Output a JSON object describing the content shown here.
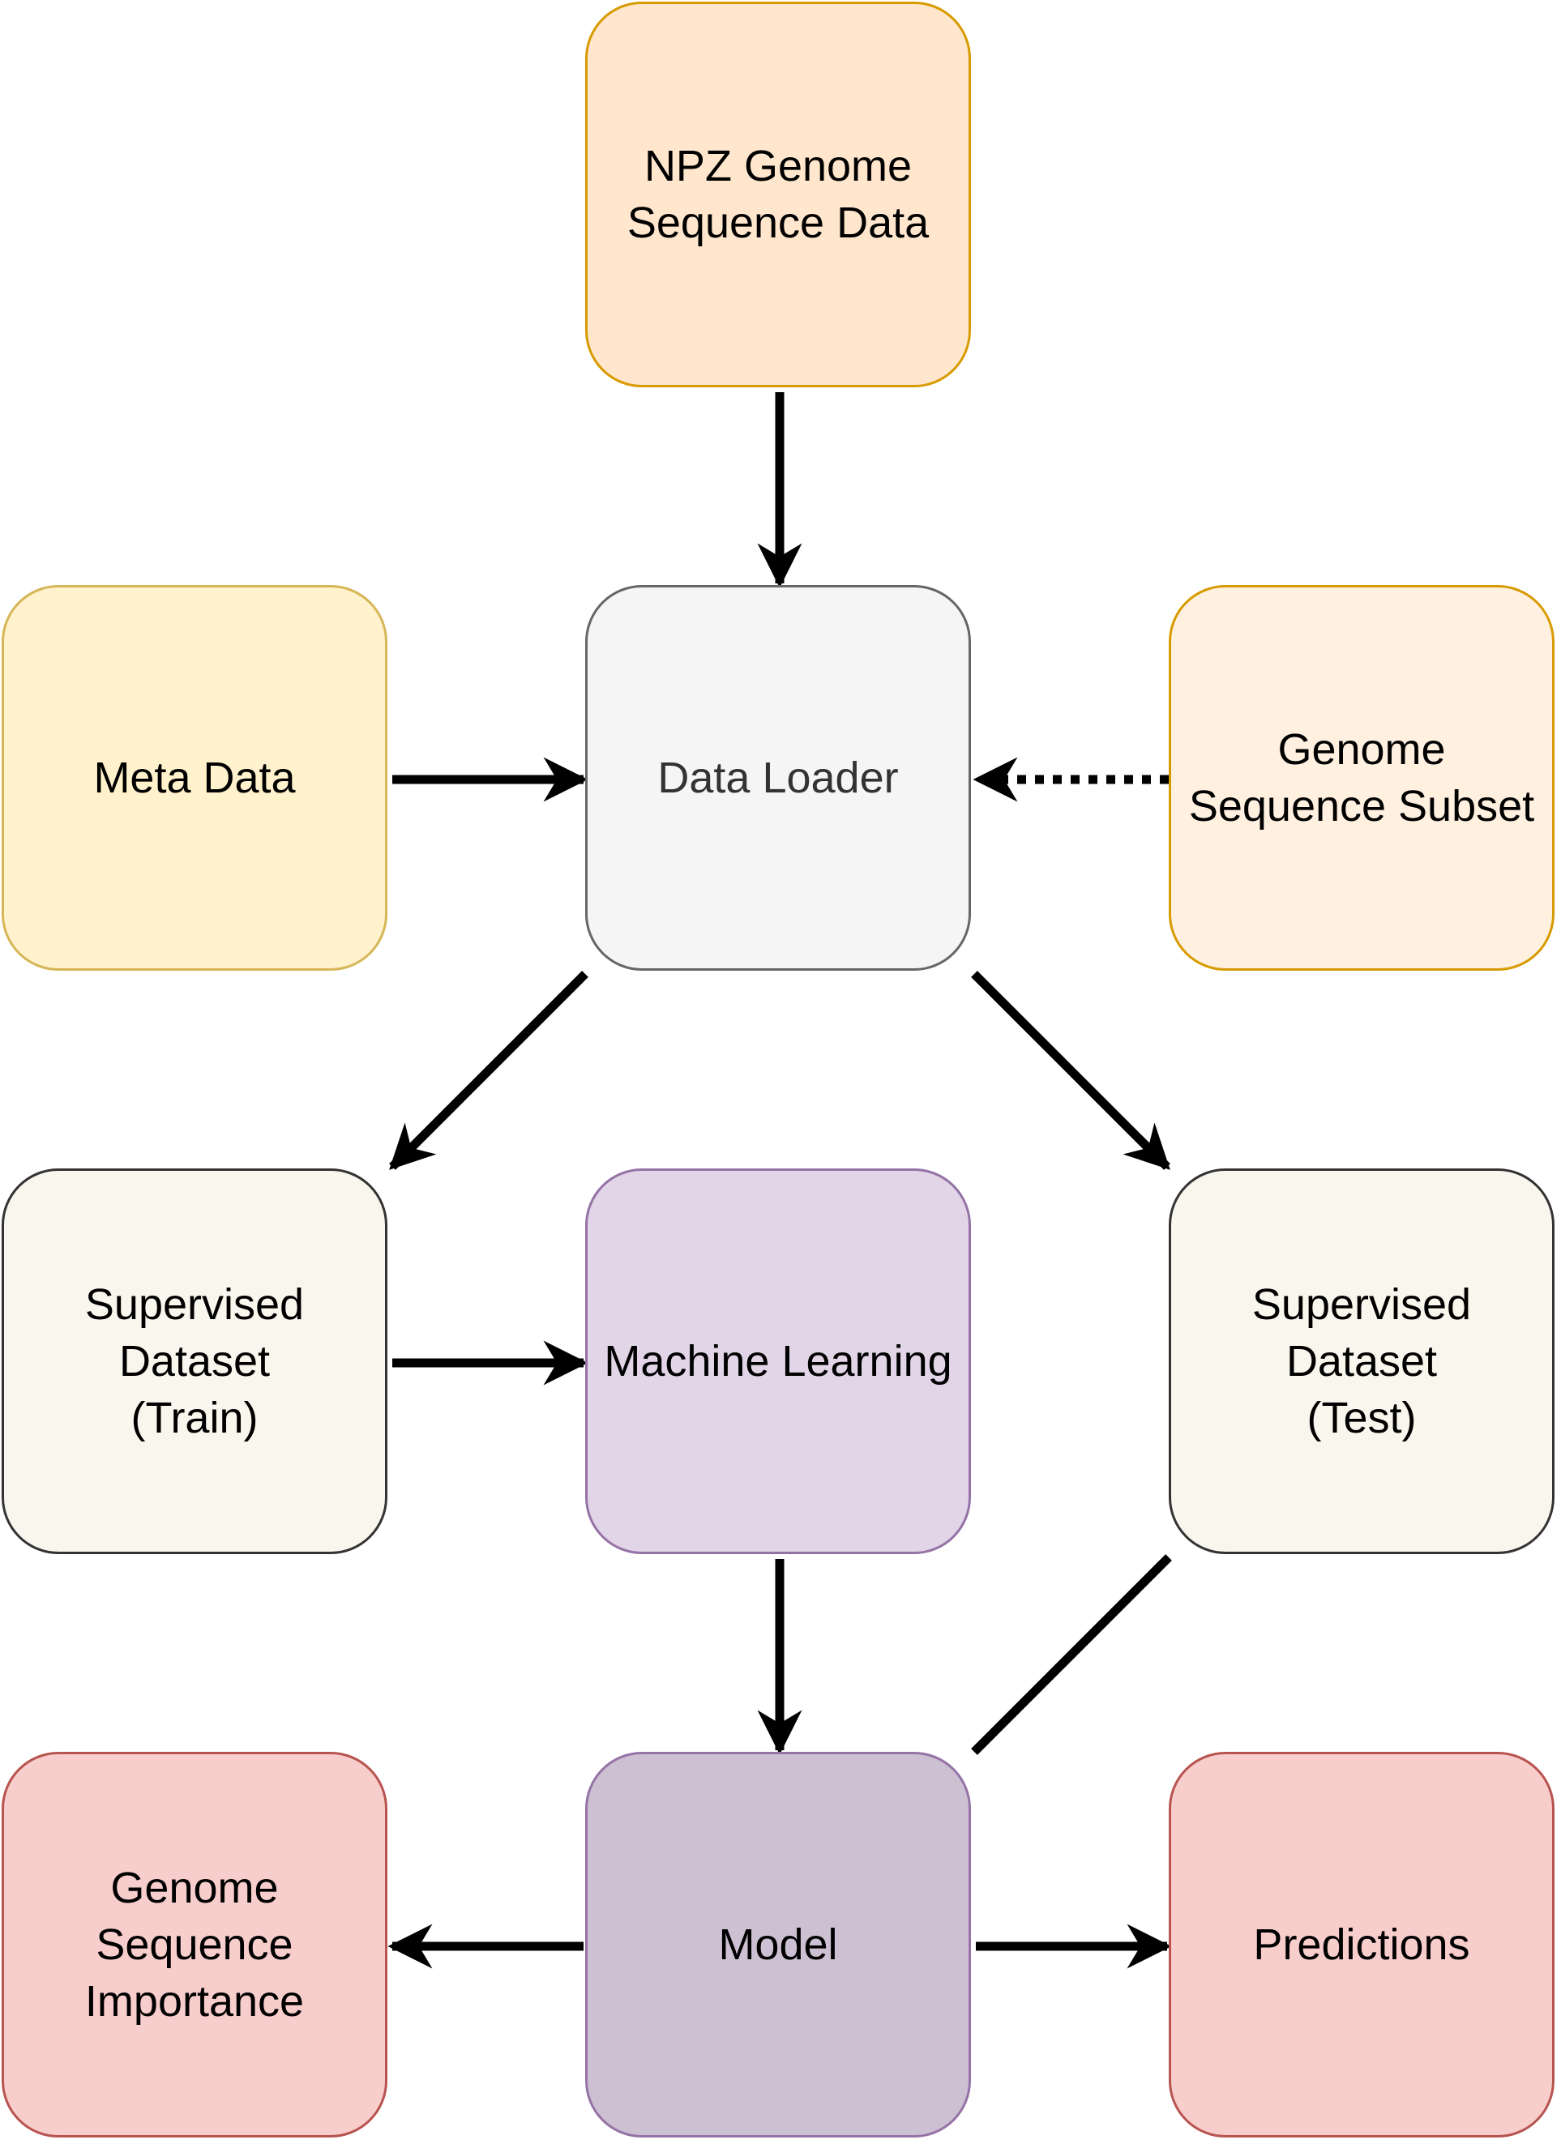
{
  "diagram": {
    "nodes": [
      {
        "id": "npz",
        "label": "NPZ Genome\nSequence Data",
        "fill": "#ffe6cc",
        "stroke": "#d79b00",
        "text_color": "#000000"
      },
      {
        "id": "meta",
        "label": "Meta Data",
        "fill": "#fff2cc",
        "stroke": "#d6b656",
        "text_color": "#000000"
      },
      {
        "id": "loader",
        "label": "Data Loader",
        "fill": "#f5f5f5",
        "stroke": "#666666",
        "text_color": "#333333"
      },
      {
        "id": "subset",
        "label": "Genome\nSequence Subset",
        "fill": "#fff0e0",
        "stroke": "#d79b00",
        "text_color": "#000000"
      },
      {
        "id": "train",
        "label": "Supervised\nDataset\n(Train)",
        "fill": "#f9f7ed",
        "stroke": "#333333",
        "text_color": "#000000"
      },
      {
        "id": "ml",
        "label": "Machine Learning",
        "fill": "#e1d5e7",
        "stroke": "#9673a6",
        "text_color": "#000000"
      },
      {
        "id": "test",
        "label": "Supervised\nDataset\n(Test)",
        "fill": "#f9f7ed",
        "stroke": "#333333",
        "text_color": "#000000"
      },
      {
        "id": "importance",
        "label": "Genome\nSequence\nImportance",
        "fill": "#f8cecc",
        "stroke": "#b85450",
        "text_color": "#000000"
      },
      {
        "id": "model",
        "label": "Model",
        "fill": "#cdc0d3",
        "stroke": "#9673a6",
        "text_color": "#000000"
      },
      {
        "id": "predictions",
        "label": "Predictions",
        "fill": "#f8cecc",
        "stroke": "#b85450",
        "text_color": "#000000"
      }
    ],
    "edges": [
      {
        "from": "npz",
        "to": "loader",
        "style": "solid",
        "arrow": true
      },
      {
        "from": "meta",
        "to": "loader",
        "style": "solid",
        "arrow": true
      },
      {
        "from": "subset",
        "to": "loader",
        "style": "dotted",
        "arrow": true
      },
      {
        "from": "loader",
        "to": "train",
        "style": "solid",
        "arrow": true
      },
      {
        "from": "loader",
        "to": "test",
        "style": "solid",
        "arrow": true
      },
      {
        "from": "train",
        "to": "ml",
        "style": "solid",
        "arrow": true
      },
      {
        "from": "ml",
        "to": "model",
        "style": "solid",
        "arrow": true
      },
      {
        "from": "test",
        "to": "model",
        "style": "solid",
        "arrow": false
      },
      {
        "from": "model",
        "to": "importance",
        "style": "solid",
        "arrow": true
      },
      {
        "from": "model",
        "to": "predictions",
        "style": "solid",
        "arrow": true
      }
    ]
  }
}
